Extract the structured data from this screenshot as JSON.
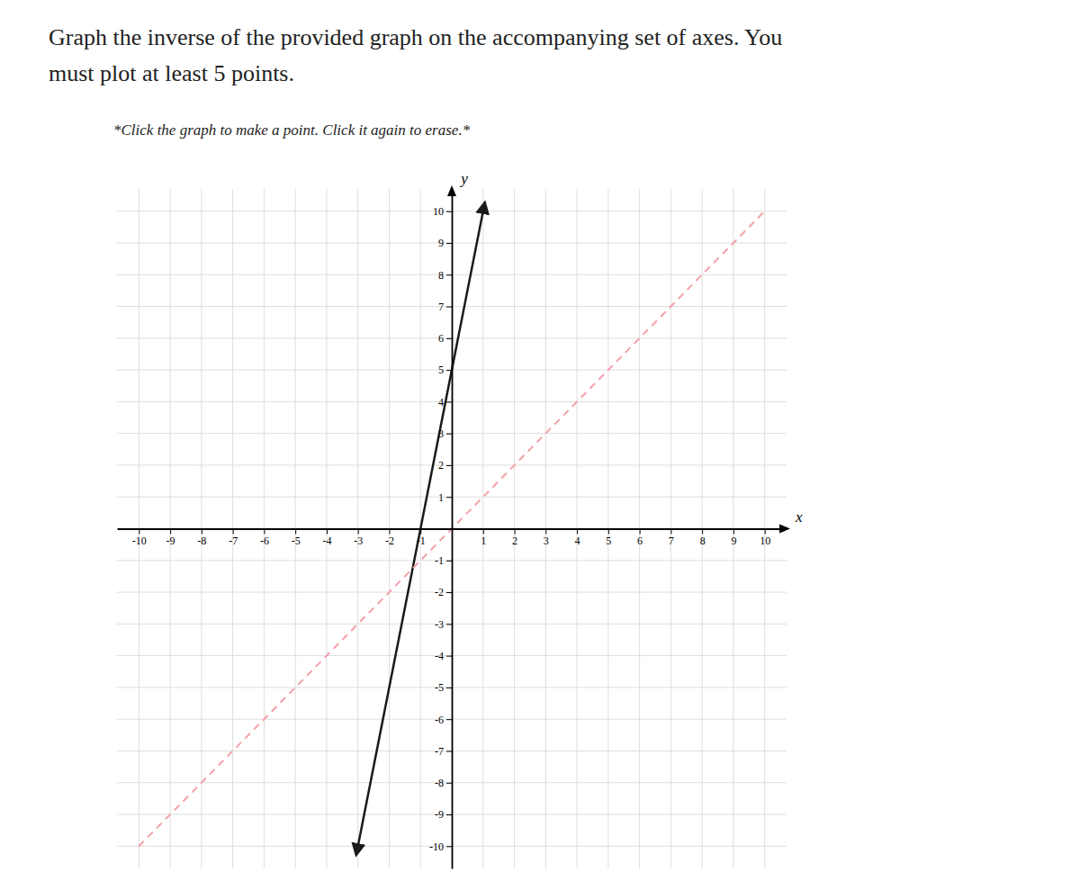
{
  "chart_data": {
    "type": "line",
    "title": [
      "Graph the inverse of the provided graph on the accompanying set of axes. You",
      "must plot at least 5 points."
    ],
    "subtitle": "*Click the graph to make a point. Click it again to erase.*",
    "xlabel": "x",
    "ylabel": "y",
    "xlim": [
      -10.7,
      10.7
    ],
    "ylim": [
      -10.7,
      10.7
    ],
    "xticks": [
      -10,
      -9,
      -8,
      -7,
      -6,
      -5,
      -4,
      -3,
      -2,
      -1,
      1,
      2,
      3,
      4,
      5,
      6,
      7,
      8,
      9,
      10
    ],
    "yticks": [
      -10,
      -9,
      -8,
      -7,
      -6,
      -5,
      -4,
      -3,
      -2,
      -1,
      1,
      2,
      3,
      4,
      5,
      6,
      7,
      8,
      9,
      10
    ],
    "grid": true,
    "series": [
      {
        "x": [
          -3.0,
          1.0
        ],
        "values": [
          -10.0,
          10.0
        ],
        "color": "#1a1a1a",
        "line_style": "solid",
        "marker": "arrow"
      },
      {
        "x": [
          -10,
          10
        ],
        "values": [
          -10,
          10
        ],
        "color": "#f4a0a8",
        "line_style": "dashed"
      }
    ]
  }
}
